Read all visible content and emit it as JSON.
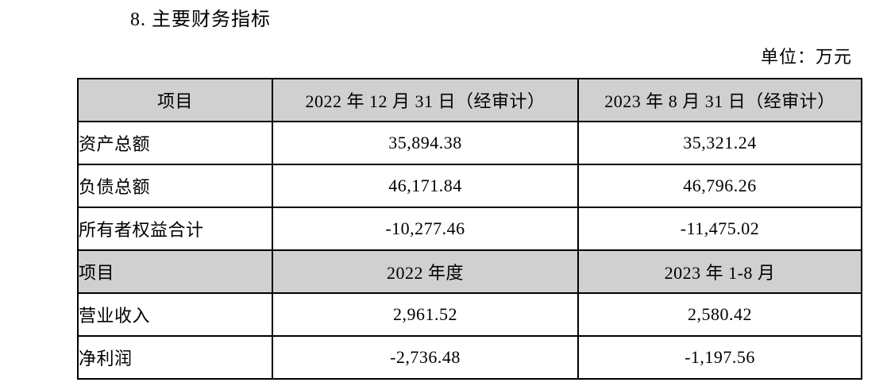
{
  "page": {
    "section_title": "8. 主要财务指标",
    "unit_label": "单位：万元"
  },
  "colors": {
    "page_bg": "#ffffff",
    "header_bg": "#d0d0d0",
    "border": "#000000",
    "text": "#000000"
  },
  "table": {
    "balance_header": {
      "item": "项目",
      "col1": "2022 年 12 月 31 日（经审计）",
      "col2": "2023 年 8 月 31 日（经审计）"
    },
    "balance_rows": [
      {
        "label": "资产总额",
        "col1": "35,894.38",
        "col2": "35,321.24"
      },
      {
        "label": "负债总额",
        "col1": "46,171.84",
        "col2": "46,796.26"
      },
      {
        "label": "所有者权益合计",
        "col1": "-10,277.46",
        "col2": "-11,475.02"
      }
    ],
    "income_header": {
      "item": "项目",
      "col1": "2022 年度",
      "col2": "2023 年 1-8 月"
    },
    "income_rows": [
      {
        "label": "营业收入",
        "col1": "2,961.52",
        "col2": "2,580.42"
      },
      {
        "label": "净利润",
        "col1": "-2,736.48",
        "col2": "-1,197.56"
      }
    ]
  }
}
